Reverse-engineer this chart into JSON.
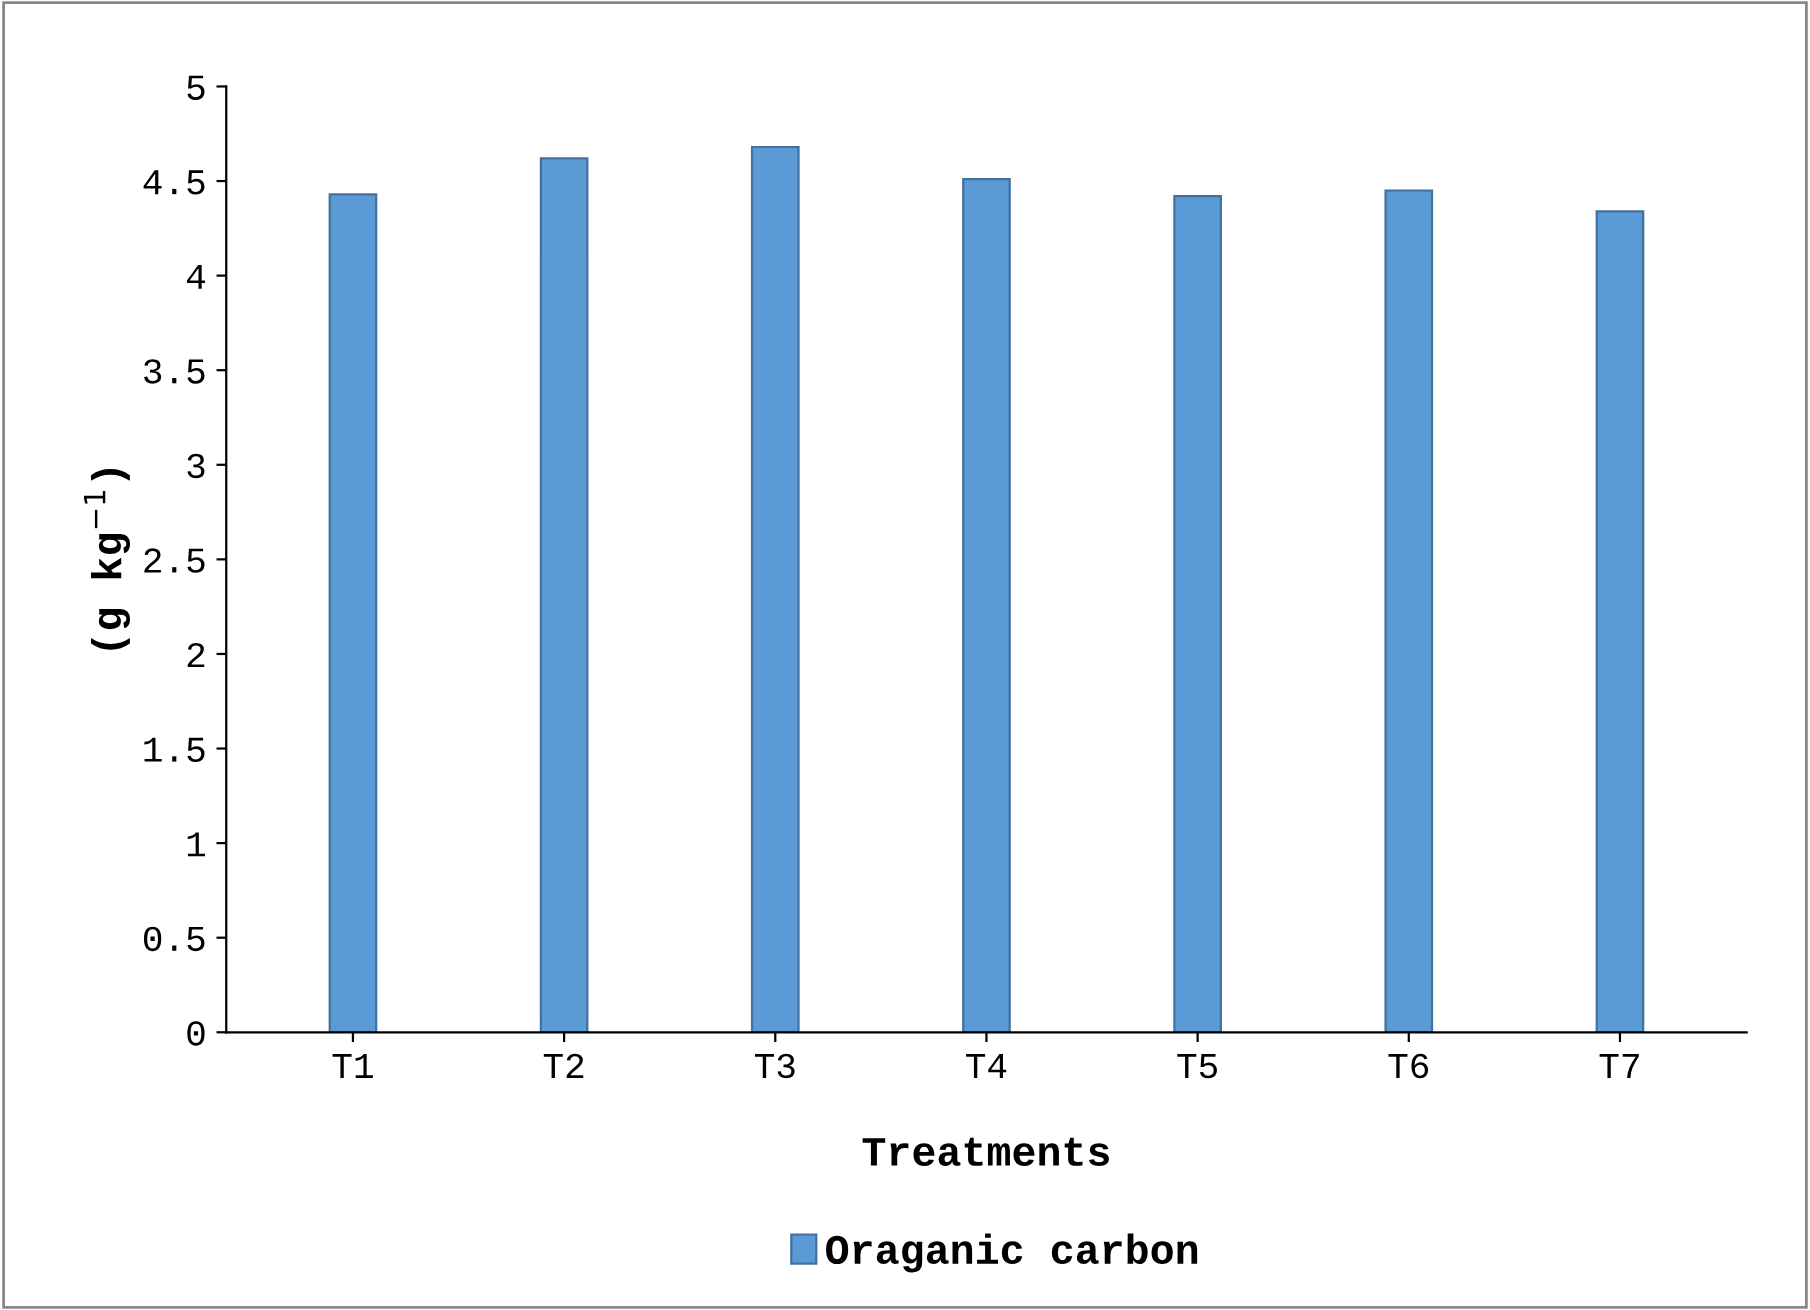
{
  "chart_data": {
    "type": "bar",
    "xlabel": "Treatments",
    "ylabel": "(g kg$^{−1}$)",
    "categories": [
      "T1",
      "T2",
      "T3",
      "T4",
      "T5",
      "T6",
      "T7"
    ],
    "series": [
      {
        "name": "Oraganic carbon",
        "color": "#5b9bd5",
        "values": [
          4.43,
          4.62,
          4.68,
          4.51,
          4.42,
          4.45,
          4.34
        ]
      }
    ],
    "ylim": [
      0,
      5
    ],
    "yticks": [
      0,
      0.5,
      1,
      1.5,
      2,
      2.5,
      3,
      3.5,
      4,
      4.5,
      5
    ],
    "grid": false,
    "legend": "bottom"
  }
}
